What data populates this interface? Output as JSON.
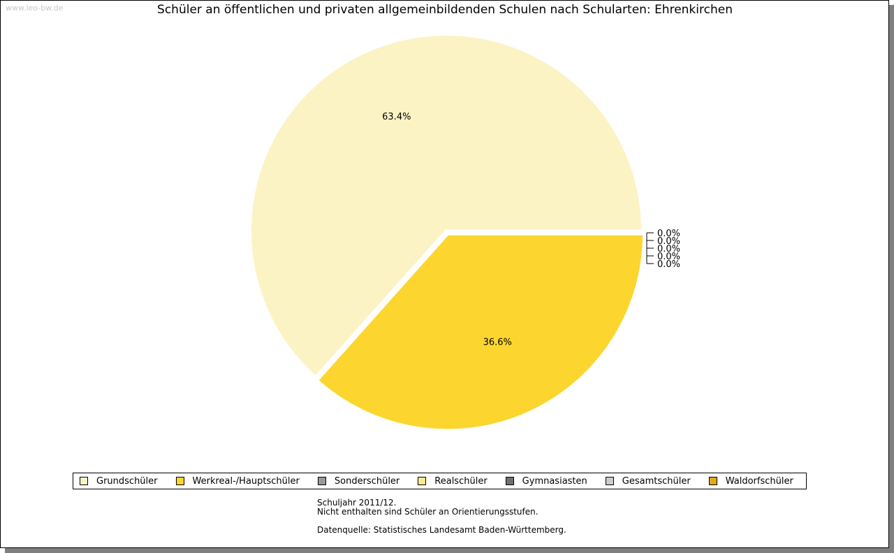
{
  "watermark": "www.leo-bw.de",
  "chart_data": {
    "type": "pie",
    "title": "Schüler an öffentlichen und privaten allgemeinbildenden Schulen nach Schularten: Ehrenkirchen",
    "categories": [
      "Grundschüler",
      "Werkreal-/Hauptschüler",
      "Sonderschüler",
      "Realschüler",
      "Gymnasiasten",
      "Gesamtschüler",
      "Waldorfschüler"
    ],
    "values": [
      63.4,
      36.6,
      0.0,
      0.0,
      0.0,
      0.0,
      0.0
    ],
    "labels": [
      "63.4%",
      "36.6%",
      "0.0%",
      "0.0%",
      "0.0%",
      "0.0%",
      "0.0%"
    ],
    "colors": [
      "#fcf3c5",
      "#fcd62e",
      "#999999",
      "#fde98c",
      "#707070",
      "#cccccc",
      "#e0a81e"
    ],
    "legend_position": "bottom"
  },
  "notes": [
    "Schuljahr 2011/12.",
    "Nicht enthalten sind Schüler an Orientierungsstufen.",
    "",
    "Datenquelle: Statistisches Landesamt Baden-Württemberg."
  ]
}
